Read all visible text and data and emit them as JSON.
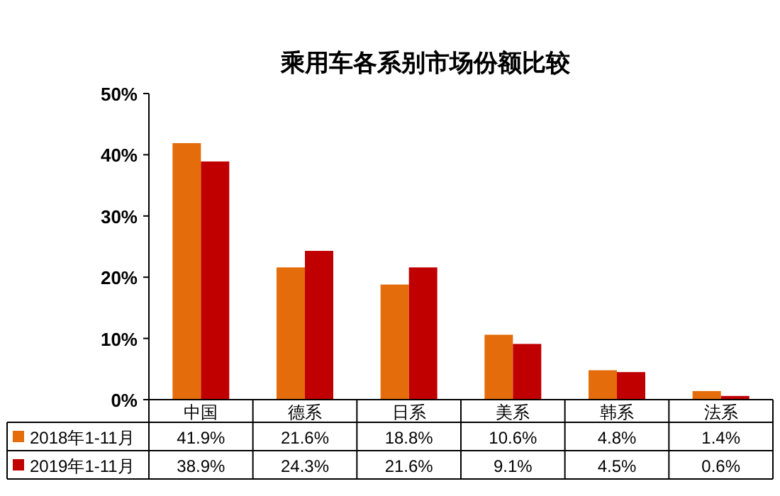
{
  "chart_data": {
    "type": "bar",
    "title": "乘用车各系别市场份额比较",
    "categories": [
      "中国",
      "德系",
      "日系",
      "美系",
      "韩系",
      "法系"
    ],
    "series": [
      {
        "name": "2018年1-11月",
        "color": "#e46c0a",
        "values": [
          41.9,
          21.6,
          18.8,
          10.6,
          4.8,
          1.4
        ],
        "value_labels": [
          "41.9%",
          "21.6%",
          "18.8%",
          "10.6%",
          "4.8%",
          "1.4%"
        ]
      },
      {
        "name": "2019年1-11月",
        "color": "#c00000",
        "values": [
          38.9,
          24.3,
          21.6,
          9.1,
          4.5,
          0.6
        ],
        "value_labels": [
          "38.9%",
          "24.3%",
          "21.6%",
          "9.1%",
          "4.5%",
          "0.6%"
        ]
      }
    ],
    "ylim": [
      0,
      50
    ],
    "yticks": [
      {
        "value": 0,
        "label": "0%"
      },
      {
        "value": 10,
        "label": "10%"
      },
      {
        "value": 20,
        "label": "20%"
      },
      {
        "value": 30,
        "label": "30%"
      },
      {
        "value": 40,
        "label": "40%"
      },
      {
        "value": 50,
        "label": "50%"
      }
    ],
    "legend": "bottom",
    "grid": false
  }
}
